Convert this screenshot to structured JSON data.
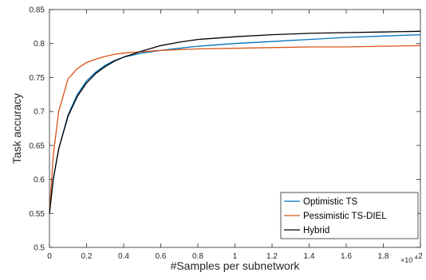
{
  "chart_data": {
    "type": "line",
    "title": "",
    "xlabel": "#Samples per subnetwork",
    "ylabel": "Task accuracy",
    "xlim": [
      0,
      20000
    ],
    "ylim": [
      0.5,
      0.85
    ],
    "x_tick_values": [
      0,
      2000,
      4000,
      6000,
      8000,
      10000,
      12000,
      14000,
      16000,
      18000,
      20000
    ],
    "x_tick_labels": [
      "0",
      "0.2",
      "0.4",
      "0.6",
      "0.8",
      "1",
      "1.2",
      "1.4",
      "1.6",
      "1.8",
      "2"
    ],
    "x_multiplier": "×10",
    "x_multiplier_exp": "4",
    "y_tick_values": [
      0.5,
      0.55,
      0.6,
      0.65,
      0.7,
      0.75,
      0.8,
      0.85
    ],
    "y_tick_labels": [
      "0.5",
      "0.55",
      "0.6",
      "0.65",
      "0.7",
      "0.75",
      "0.8",
      "0.85"
    ],
    "grid": false,
    "legend_position": "bottom-right",
    "series": [
      {
        "name": "Optimistic TS",
        "color": "#0072BD",
        "x": [
          0,
          200,
          500,
          1000,
          1500,
          2000,
          2500,
          3000,
          3500,
          4000,
          5000,
          6000,
          7000,
          8000,
          10000,
          12000,
          14000,
          16000,
          18000,
          20000
        ],
        "y": [
          0.55,
          0.6,
          0.645,
          0.695,
          0.725,
          0.745,
          0.758,
          0.768,
          0.775,
          0.78,
          0.786,
          0.79,
          0.793,
          0.796,
          0.8,
          0.803,
          0.806,
          0.809,
          0.811,
          0.813
        ]
      },
      {
        "name": "Pessimistic TS-DIEL",
        "color": "#D95319",
        "x": [
          0,
          200,
          500,
          1000,
          1500,
          2000,
          2500,
          3000,
          3500,
          4000,
          5000,
          6000,
          7000,
          8000,
          10000,
          12000,
          14000,
          16000,
          18000,
          20000
        ],
        "y": [
          0.55,
          0.635,
          0.7,
          0.748,
          0.763,
          0.772,
          0.777,
          0.781,
          0.784,
          0.786,
          0.788,
          0.79,
          0.791,
          0.792,
          0.793,
          0.794,
          0.795,
          0.795,
          0.796,
          0.797
        ]
      },
      {
        "name": "Hybrid",
        "color": "#000000",
        "x": [
          0,
          200,
          500,
          1000,
          1500,
          2000,
          2500,
          3000,
          3500,
          4000,
          5000,
          6000,
          7000,
          8000,
          10000,
          12000,
          14000,
          16000,
          18000,
          20000
        ],
        "y": [
          0.55,
          0.6,
          0.645,
          0.693,
          0.722,
          0.742,
          0.756,
          0.766,
          0.774,
          0.78,
          0.789,
          0.797,
          0.802,
          0.806,
          0.81,
          0.813,
          0.815,
          0.816,
          0.817,
          0.818
        ]
      }
    ]
  }
}
